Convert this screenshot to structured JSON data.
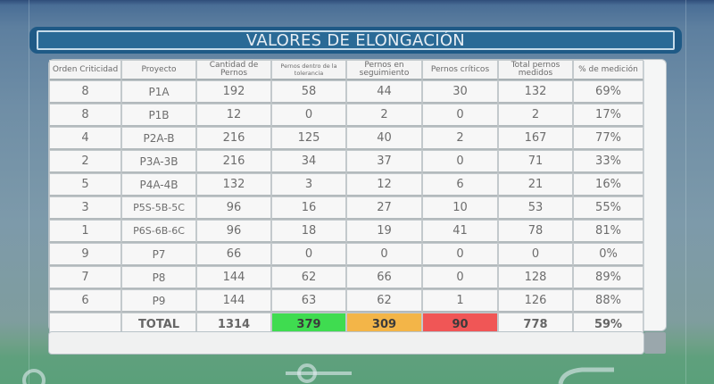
{
  "title": "VALORES DE ELONGACIÓN",
  "table": {
    "headers": [
      "Orden Criticidad",
      "Proyecto",
      "Cantidad de Pernos",
      "Pernos dentro de la tolerancia",
      "Pernos en seguimiento",
      "Pernos críticos",
      "Total pernos medidos",
      "% de medición"
    ],
    "rows": [
      {
        "orden": "8",
        "proyecto": "P1A",
        "cantidad": "192",
        "dentro": "58",
        "seguimiento": "44",
        "criticos": "30",
        "total": "132",
        "pct": "69%"
      },
      {
        "orden": "8",
        "proyecto": "P1B",
        "cantidad": "12",
        "dentro": "0",
        "seguimiento": "2",
        "criticos": "0",
        "total": "2",
        "pct": "17%"
      },
      {
        "orden": "4",
        "proyecto": "P2A-B",
        "cantidad": "216",
        "dentro": "125",
        "seguimiento": "40",
        "criticos": "2",
        "total": "167",
        "pct": "77%"
      },
      {
        "orden": "2",
        "proyecto": "P3A-3B",
        "cantidad": "216",
        "dentro": "34",
        "seguimiento": "37",
        "criticos": "0",
        "total": "71",
        "pct": "33%"
      },
      {
        "orden": "5",
        "proyecto": "P4A-4B",
        "cantidad": "132",
        "dentro": "3",
        "seguimiento": "12",
        "criticos": "6",
        "total": "21",
        "pct": "16%"
      },
      {
        "orden": "3",
        "proyecto": "P5S-5B-5C",
        "cantidad": "96",
        "dentro": "16",
        "seguimiento": "27",
        "criticos": "10",
        "total": "53",
        "pct": "55%"
      },
      {
        "orden": "1",
        "proyecto": "P6S-6B-6C",
        "cantidad": "96",
        "dentro": "18",
        "seguimiento": "19",
        "criticos": "41",
        "total": "78",
        "pct": "81%"
      },
      {
        "orden": "9",
        "proyecto": "P7",
        "cantidad": "66",
        "dentro": "0",
        "seguimiento": "0",
        "criticos": "0",
        "total": "0",
        "pct": "0%"
      },
      {
        "orden": "7",
        "proyecto": "P8",
        "cantidad": "144",
        "dentro": "62",
        "seguimiento": "66",
        "criticos": "0",
        "total": "128",
        "pct": "89%"
      },
      {
        "orden": "6",
        "proyecto": "P9",
        "cantidad": "144",
        "dentro": "63",
        "seguimiento": "62",
        "criticos": "1",
        "total": "126",
        "pct": "88%"
      }
    ],
    "total": {
      "label": "TOTAL",
      "cantidad": "1314",
      "dentro": "379",
      "seguimiento": "309",
      "criticos": "90",
      "total": "778",
      "pct": "59%"
    }
  },
  "colors": {
    "title_bar": "#1f5a86",
    "ok": "#3fdc50",
    "warning": "#f3b548",
    "critical": "#f05656"
  },
  "icons": [
    "search-icon",
    "slider-icon",
    "gauge-icon"
  ]
}
